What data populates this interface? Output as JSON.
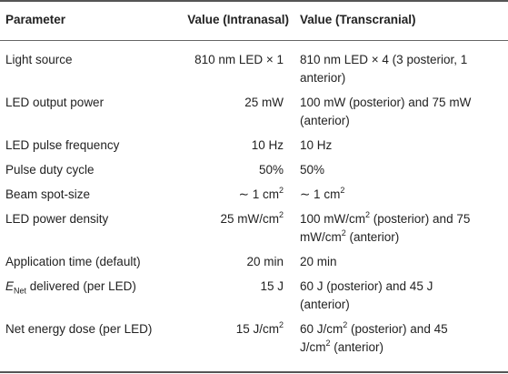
{
  "table": {
    "headers": {
      "parameter": "Parameter",
      "intranasal": "Value (Intranasal)",
      "transcranial": "Value (Transcranial)"
    },
    "rows": [
      {
        "parameter": "Light source",
        "intranasal": "810 nm LED × 1",
        "transcranial_line1": "810 nm LED × 4 (3 posterior, 1",
        "transcranial_line2": "anterior)"
      },
      {
        "parameter": "LED output power",
        "intranasal": "25 mW",
        "transcranial_line1": "100 mW (posterior) and 75 mW",
        "transcranial_line2": "(anterior)"
      },
      {
        "parameter": "LED pulse frequency",
        "intranasal": "10 Hz",
        "transcranial": "10 Hz"
      },
      {
        "parameter": "Pulse duty cycle",
        "intranasal": "50%",
        "transcranial": "50%"
      },
      {
        "parameter": "Beam spot-size",
        "intranasal_base": "∼ 1 cm",
        "intranasal_sup": "2",
        "transcranial_base": "∼ 1 cm",
        "transcranial_sup": "2"
      },
      {
        "parameter": "LED power density",
        "intranasal_base": "25 mW/cm",
        "intranasal_sup": "2",
        "transcranial_l1_base": "100 mW/cm",
        "transcranial_l1_sup": "2",
        "transcranial_l1_rest": " (posterior) and 75",
        "transcranial_l2_base": "mW/cm",
        "transcranial_l2_sup": "2",
        "transcranial_l2_rest": " (anterior)"
      },
      {
        "parameter": "Application time (default)",
        "intranasal": "20 min",
        "transcranial": "20 min"
      },
      {
        "parameter_italic": "E",
        "parameter_sub": "Net",
        "parameter_rest": " delivered (per LED)",
        "intranasal": "15 J",
        "transcranial_line1": "60 J (posterior) and 45 J",
        "transcranial_line2": "(anterior)"
      },
      {
        "parameter": "Net energy dose (per LED)",
        "intranasal_base": "15 J/cm",
        "intranasal_sup": "2",
        "transcranial_l1_base": "60 J/cm",
        "transcranial_l1_sup": "2",
        "transcranial_l1_rest": " (posterior) and 45",
        "transcranial_l2_base": "J/cm",
        "transcranial_l2_sup": "2",
        "transcranial_l2_rest": " (anterior)"
      }
    ]
  }
}
